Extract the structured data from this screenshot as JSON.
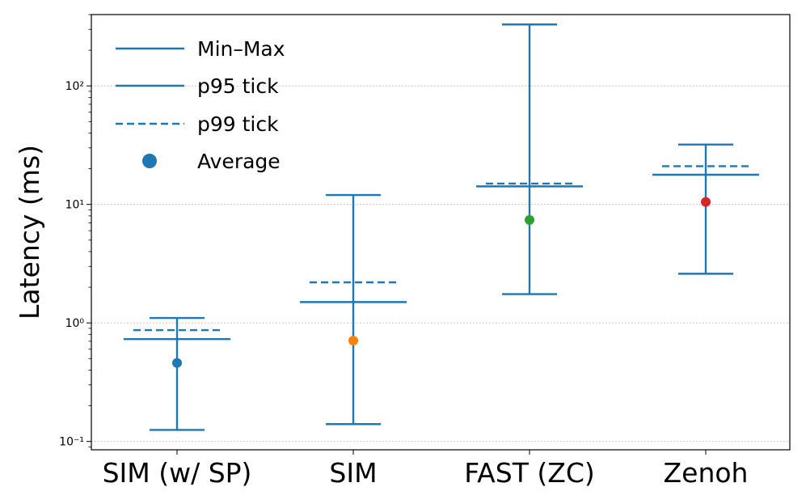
{
  "chart_data": {
    "type": "errorbar",
    "title": "",
    "xlabel": "",
    "ylabel": "Latency (ms)",
    "yscale": "log",
    "ylim": [
      0.085,
      400
    ],
    "grid": "y-major-dotted",
    "legend_position": "top-left",
    "categories": [
      "SIM (w/ SP)",
      "SIM",
      "FAST (ZC)",
      "Zenoh"
    ],
    "series": [
      {
        "name": "Min–Max",
        "min": [
          0.125,
          0.14,
          1.75,
          2.6
        ],
        "max": [
          1.1,
          12.0,
          330,
          32
        ]
      },
      {
        "name": "p95 tick",
        "values": [
          0.73,
          1.5,
          14.2,
          17.8
        ]
      },
      {
        "name": "p99 tick",
        "values": [
          0.87,
          2.2,
          15.0,
          21.0
        ]
      },
      {
        "name": "Average",
        "values": [
          0.46,
          0.71,
          7.4,
          10.5
        ]
      }
    ],
    "average_colors": [
      "#1f77b4",
      "#ff7f0e",
      "#2ca02c",
      "#d62728"
    ],
    "line_color": "#1f77b4",
    "y_ticks": [
      {
        "value": 0.1,
        "label": "10⁻¹"
      },
      {
        "value": 1,
        "label": "10⁰"
      },
      {
        "value": 10,
        "label": "10¹"
      },
      {
        "value": 100,
        "label": "10²"
      }
    ]
  }
}
